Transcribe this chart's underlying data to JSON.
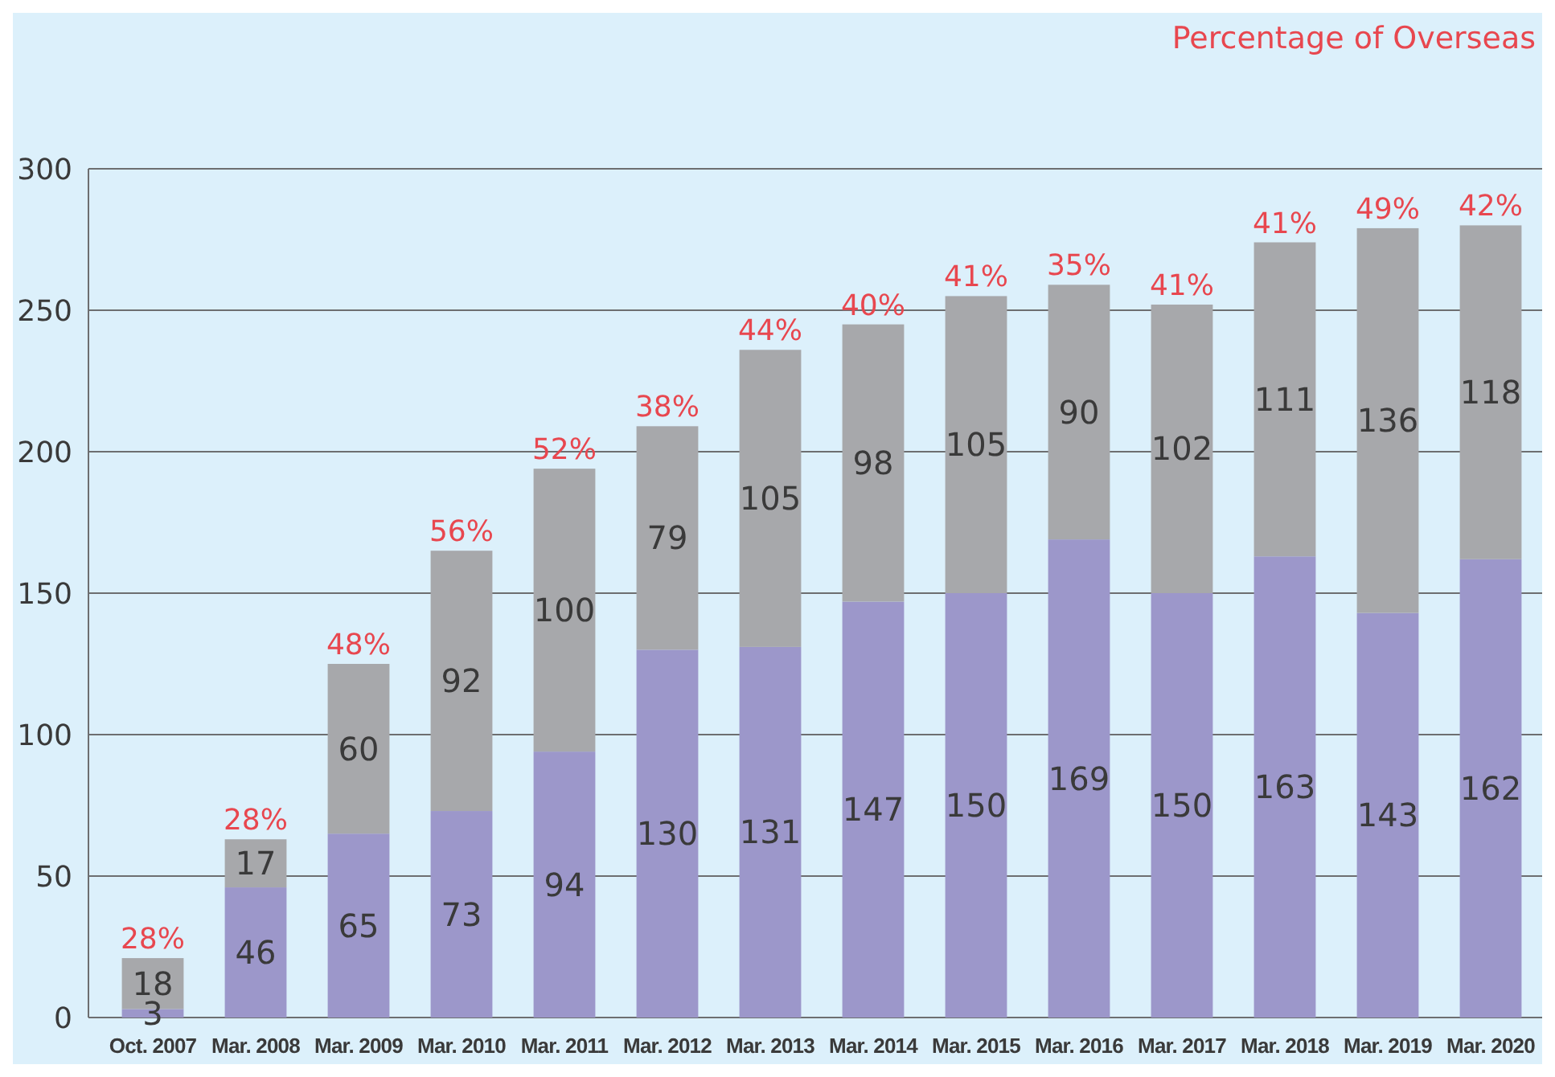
{
  "chart_data": {
    "type": "bar",
    "stacked": true,
    "categories": [
      "Oct. 2007",
      "Mar. 2008",
      "Mar. 2009",
      "Mar. 2010",
      "Mar. 2011",
      "Mar. 2012",
      "Mar. 2013",
      "Mar. 2014",
      "Mar. 2015",
      "Mar. 2016",
      "Mar. 2017",
      "Mar. 2018",
      "Mar. 2019",
      "Mar. 2020"
    ],
    "series": [
      {
        "color": "#9c97ca",
        "values": [
          3,
          46,
          65,
          73,
          94,
          130,
          131,
          147,
          150,
          169,
          150,
          163,
          143,
          162
        ]
      },
      {
        "color": "#a7a8ab",
        "values": [
          18,
          17,
          60,
          92,
          100,
          79,
          105,
          98,
          105,
          90,
          102,
          111,
          136,
          118
        ]
      }
    ],
    "ylim": [
      0,
      300
    ],
    "yticks": [
      0,
      50,
      100,
      150,
      200,
      250,
      300
    ],
    "grid": "y",
    "data_labels": true,
    "annotations": [
      "Percentage of Overseas",
      {
        "text": "28%",
        "x": "Oct. 2007",
        "y": 21
      },
      {
        "text": "28%",
        "x": "Mar. 2008",
        "y": 63
      },
      {
        "text": "48%",
        "x": "Mar. 2009",
        "y": 125
      },
      {
        "text": "56%",
        "x": "Mar. 2010",
        "y": 165
      },
      {
        "text": "52%",
        "x": "Mar. 2011",
        "y": 194
      },
      {
        "text": "38%",
        "x": "Mar. 2012",
        "y": 209
      },
      {
        "text": "44%",
        "x": "Mar. 2013",
        "y": 236
      },
      {
        "text": "40%",
        "x": "Mar. 2014",
        "y": 245
      },
      {
        "text": "41%",
        "x": "Mar. 2015",
        "y": 255
      },
      {
        "text": "35%",
        "x": "Mar. 2016",
        "y": 259
      },
      {
        "text": "41%",
        "x": "Mar. 2017",
        "y": 252
      },
      {
        "text": "41%",
        "x": "Mar. 2018",
        "y": 274
      },
      {
        "text": "49%",
        "x": "Mar. 2019",
        "y": 279
      },
      {
        "text": "42%",
        "x": "Mar. 2020",
        "y": 280
      }
    ]
  }
}
